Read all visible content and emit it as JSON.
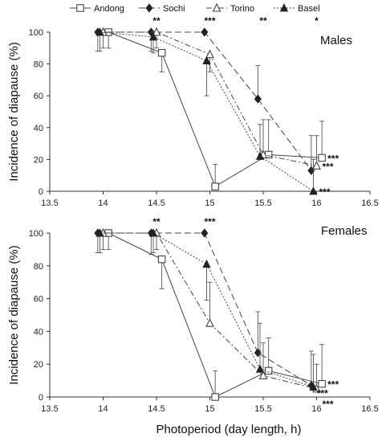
{
  "legend": {
    "items": [
      {
        "label": "Andong",
        "marker": "open-square",
        "dash": "solid"
      },
      {
        "label": "Sochi",
        "marker": "filled-diamond",
        "dash": "longdash"
      },
      {
        "label": "Torino",
        "marker": "open-triangle",
        "dash": "dashdot"
      },
      {
        "label": "Basel",
        "marker": "filled-triangle",
        "dash": "dotted"
      }
    ]
  },
  "shared_xlabel": "Photoperiod (day length, h)",
  "chart_data": [
    {
      "type": "line",
      "panel_label": "Males",
      "ylabel": "Incidence of diapause (%)",
      "xlim": [
        13.5,
        16.5
      ],
      "ylim": [
        0,
        100
      ],
      "xticks": [
        "13.5",
        "14",
        "14.5",
        "15",
        "15.5",
        "16",
        "16.5"
      ],
      "yticks": [
        "0",
        "20",
        "40",
        "60",
        "80",
        "100"
      ],
      "series": [
        {
          "name": "Andong",
          "x": [
            14.05,
            14.55,
            15.05,
            15.55,
            16.05
          ],
          "y": [
            100,
            87,
            3,
            23,
            21
          ],
          "err": [
            10,
            12,
            14,
            22,
            23
          ]
        },
        {
          "name": "Sochi",
          "x": [
            13.95,
            14.45,
            14.95,
            15.45,
            15.95
          ],
          "y": [
            100,
            100,
            100,
            58,
            13
          ],
          "err": [
            12,
            12,
            0,
            21,
            22
          ]
        },
        {
          "name": "Torino",
          "x": [
            14.0,
            14.5,
            15.0,
            15.5,
            16.0
          ],
          "y": [
            100,
            100,
            86,
            23,
            16
          ],
          "err": [
            10,
            10,
            11,
            22,
            19
          ]
        },
        {
          "name": "Basel",
          "x": [
            13.97,
            14.47,
            14.97,
            15.47,
            15.97
          ],
          "y": [
            100,
            97,
            82,
            22,
            0
          ],
          "err": [
            12,
            10,
            22,
            20,
            20
          ]
        }
      ],
      "significance": [
        {
          "x": 14.5,
          "label": "**"
        },
        {
          "x": 15.0,
          "label": "***"
        },
        {
          "x": 15.5,
          "label": "**"
        },
        {
          "x": 16.0,
          "label": "*"
        }
      ],
      "end_annotations": [
        {
          "series": "Andong",
          "label": "***"
        },
        {
          "series": "Torino",
          "label": "***"
        },
        {
          "series": "Basel",
          "label": "***"
        }
      ]
    },
    {
      "type": "line",
      "panel_label": "Females",
      "ylabel": "Incidence of diapause (%)",
      "xlabel": "Photoperiod (day length, h)",
      "xlim": [
        13.5,
        16.5
      ],
      "ylim": [
        0,
        100
      ],
      "xticks": [
        "13.5",
        "14",
        "14.5",
        "15",
        "15.5",
        "16",
        "16.5"
      ],
      "yticks": [
        "0",
        "20",
        "40",
        "60",
        "80",
        "100"
      ],
      "series": [
        {
          "name": "Andong",
          "x": [
            14.05,
            14.55,
            15.05,
            15.55,
            16.05
          ],
          "y": [
            100,
            84,
            0,
            16,
            8
          ],
          "err": [
            10,
            18,
            16,
            20,
            24
          ]
        },
        {
          "name": "Sochi",
          "x": [
            13.95,
            14.45,
            14.95,
            15.45,
            15.95
          ],
          "y": [
            100,
            100,
            100,
            27,
            7
          ],
          "err": [
            12,
            13,
            0,
            25,
            21
          ]
        },
        {
          "name": "Torino",
          "x": [
            14.0,
            14.5,
            15.0,
            15.5,
            16.0
          ],
          "y": [
            100,
            100,
            45,
            13,
            5
          ],
          "err": [
            10,
            10,
            25,
            20,
            15
          ]
        },
        {
          "name": "Basel",
          "x": [
            13.97,
            14.47,
            14.97,
            15.47,
            15.97
          ],
          "y": [
            100,
            100,
            81,
            17,
            6
          ],
          "err": [
            12,
            12,
            22,
            28,
            20
          ]
        }
      ],
      "significance": [
        {
          "x": 14.5,
          "label": "**"
        },
        {
          "x": 15.0,
          "label": "***"
        }
      ],
      "end_annotations": [
        {
          "series": "Andong",
          "label": "***"
        },
        {
          "series": "Sochi",
          "label": "***"
        },
        {
          "series": "Torino",
          "label": "***"
        }
      ]
    }
  ]
}
